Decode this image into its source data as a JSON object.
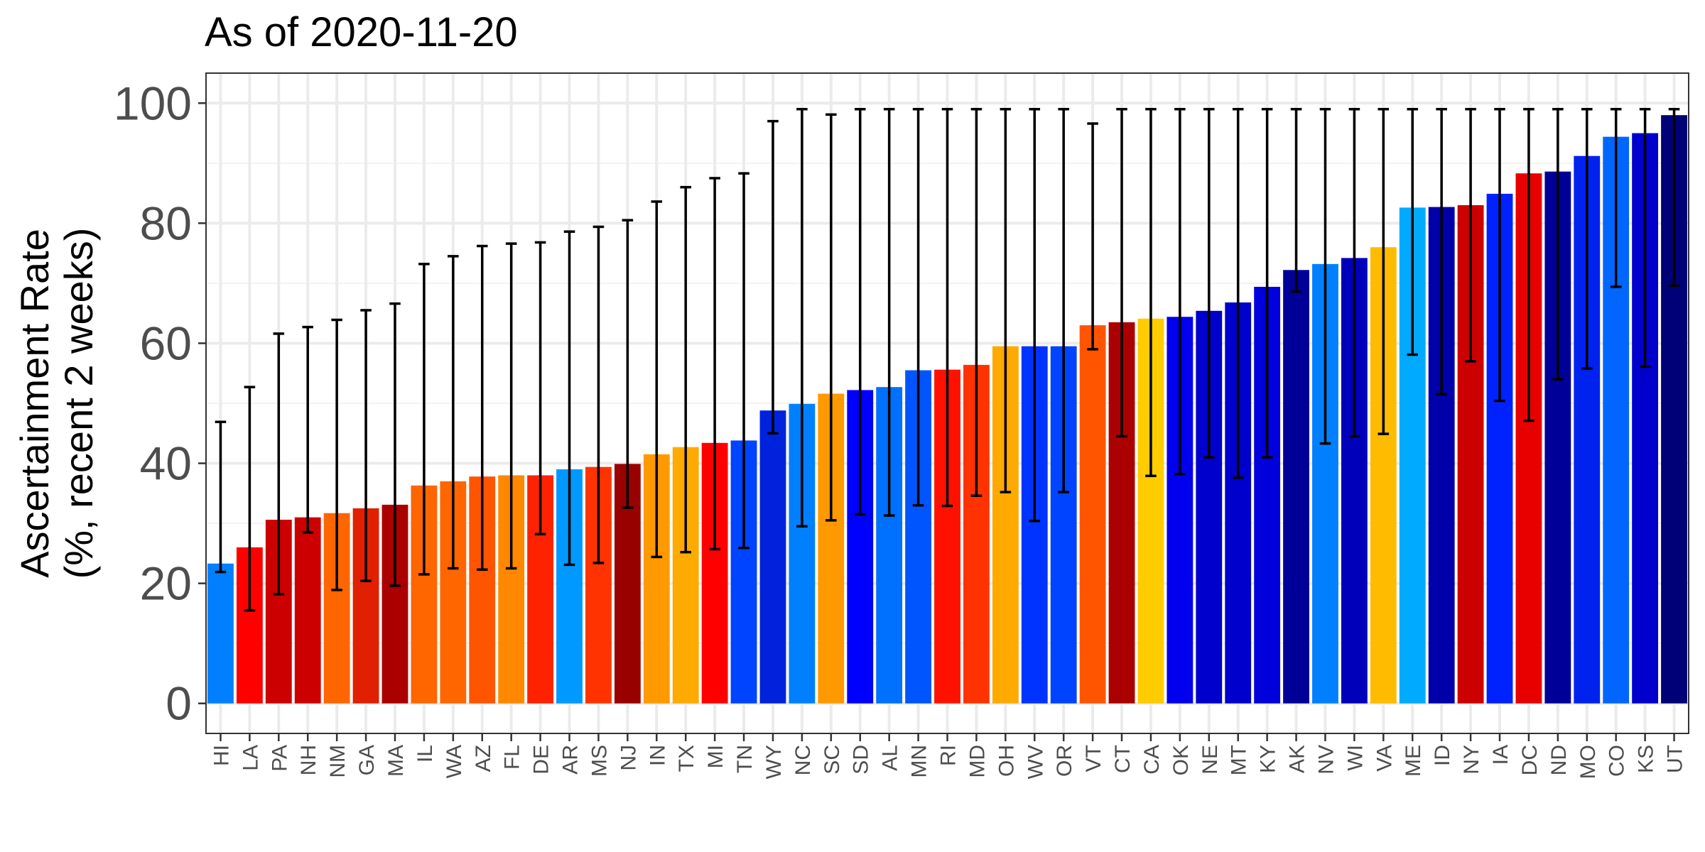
{
  "chart_data": {
    "type": "bar",
    "title": "As of 2020-11-20",
    "ylabel_lines": [
      "Ascertainment Rate",
      "(%, recent 2 weeks)"
    ],
    "xlabel": "",
    "ylim": [
      -5,
      105
    ],
    "yticks": [
      0,
      20,
      40,
      60,
      80,
      100
    ],
    "grid": true,
    "legend": "none",
    "categories": [
      "HI",
      "LA",
      "PA",
      "NH",
      "NM",
      "GA",
      "MA",
      "IL",
      "WA",
      "AZ",
      "FL",
      "DE",
      "AR",
      "MS",
      "NJ",
      "IN",
      "TX",
      "MI",
      "TN",
      "WY",
      "NC",
      "SC",
      "SD",
      "AL",
      "MN",
      "RI",
      "MD",
      "OH",
      "WV",
      "OR",
      "VT",
      "CT",
      "CA",
      "OK",
      "NE",
      "MT",
      "KY",
      "AK",
      "NV",
      "WI",
      "VA",
      "ME",
      "ID",
      "NY",
      "IA",
      "DC",
      "ND",
      "MO",
      "CO",
      "KS",
      "UT"
    ],
    "values": [
      23.3,
      26.0,
      30.6,
      31.0,
      31.7,
      32.5,
      33.1,
      36.3,
      37.0,
      37.8,
      38.0,
      38.0,
      39.0,
      39.4,
      39.9,
      41.5,
      42.7,
      43.4,
      43.8,
      48.8,
      49.9,
      51.6,
      52.2,
      52.7,
      55.5,
      55.6,
      56.4,
      59.5,
      59.5,
      59.5,
      63.0,
      63.5,
      64.1,
      64.4,
      65.4,
      66.8,
      69.4,
      72.2,
      73.2,
      74.2,
      76.0,
      82.6,
      82.7,
      83.0,
      84.9,
      88.3,
      88.6,
      91.2,
      94.4,
      95.0,
      98.0
    ],
    "error_low": [
      21.9,
      15.5,
      18.2,
      28.5,
      18.9,
      20.4,
      19.6,
      21.5,
      22.5,
      22.3,
      22.5,
      28.2,
      23.1,
      23.4,
      32.6,
      24.4,
      25.2,
      25.7,
      25.9,
      45.0,
      29.5,
      30.5,
      31.5,
      31.3,
      33.0,
      32.9,
      34.6,
      35.2,
      30.4,
      35.2,
      59.0,
      44.5,
      37.9,
      38.2,
      41.0,
      37.6,
      41.0,
      68.6,
      43.3,
      44.5,
      44.9,
      58.1,
      51.5,
      57.0,
      50.4,
      47.1,
      54.0,
      55.8,
      69.4,
      56.1,
      69.6
    ],
    "error_high": [
      46.9,
      52.7,
      61.6,
      62.7,
      63.9,
      65.5,
      66.6,
      73.2,
      74.5,
      76.2,
      76.6,
      76.8,
      78.6,
      79.4,
      80.5,
      83.6,
      86.0,
      87.5,
      88.3,
      97.0,
      99.0,
      98.1,
      99.0,
      99.0,
      99.0,
      99.0,
      99.0,
      99.0,
      99.0,
      99.0,
      96.6,
      99.0,
      99.0,
      99.0,
      99.0,
      99.0,
      99.0,
      99.0,
      99.0,
      99.0,
      99.0,
      99.0,
      99.0,
      99.0,
      99.0,
      99.0,
      99.0,
      99.0,
      99.0,
      99.0,
      99.0
    ],
    "colors": [
      "#0080FF",
      "#FF0000",
      "#CC0000",
      "#CC0000",
      "#FF6600",
      "#E02000",
      "#AA0000",
      "#FF6600",
      "#FF6600",
      "#FF5500",
      "#FF8800",
      "#FF2200",
      "#0099FF",
      "#FF3300",
      "#990000",
      "#FF9900",
      "#FFAA00",
      "#FF0000",
      "#0044FF",
      "#0022DD",
      "#0080FF",
      "#FF9900",
      "#0000FF",
      "#0070FF",
      "#0055FF",
      "#FF1100",
      "#FF3300",
      "#FFAA00",
      "#0033FF",
      "#0044FF",
      "#FF5500",
      "#AA0000",
      "#FFCC00",
      "#0000EE",
      "#0000CC",
      "#0000CC",
      "#0000DD",
      "#000099",
      "#0080FF",
      "#0000BB",
      "#FFBB00",
      "#00AAFF",
      "#0000AA",
      "#CC0000",
      "#0022FF",
      "#E80000",
      "#000099",
      "#0022EE",
      "#0066FF",
      "#0000CC",
      "#000077"
    ]
  }
}
